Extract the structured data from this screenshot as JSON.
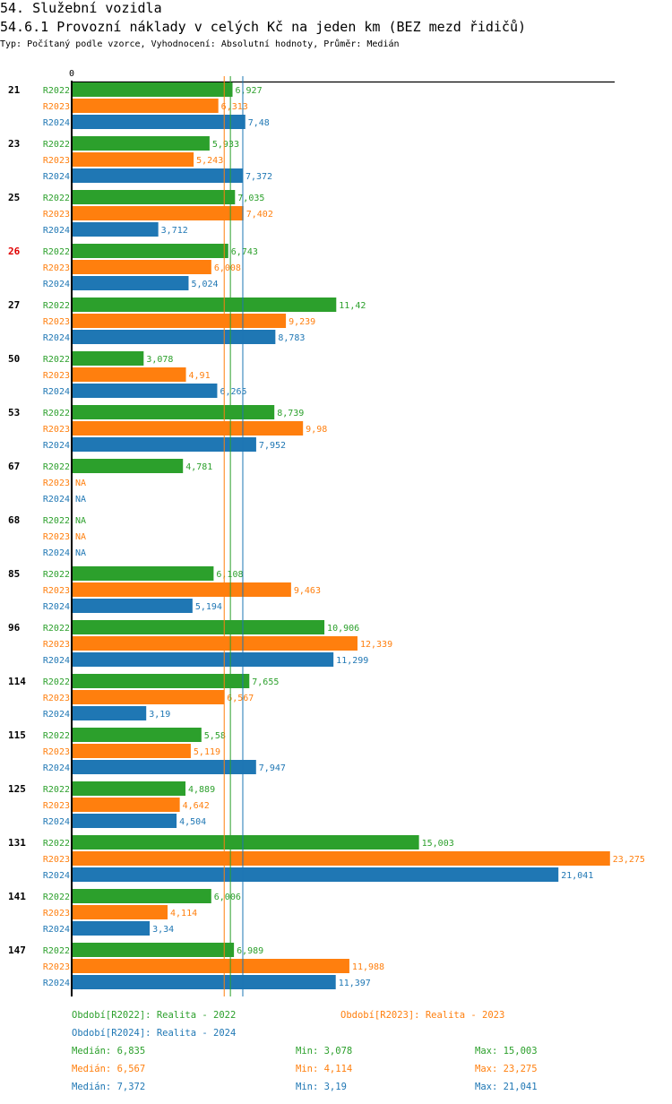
{
  "header": {
    "section_title": "54. Služební vozidla",
    "chart_title": "54.6.1 Provozní náklady v celých Kč na jeden km (BEZ mezd řidičů)",
    "subtitle": "Typ: Počítaný podle vzorce, Vyhodnocení: Absolutní hodnoty, Průměr: Medián"
  },
  "colors": {
    "R2022": "#2ca02c",
    "R2023": "#ff7f0e",
    "R2024": "#1f77b4",
    "highlight": "#e00000",
    "axis": "#000000"
  },
  "chart_data": {
    "type": "bar",
    "orientation": "horizontal",
    "title": "54.6.1 Provozní náklady v celých Kč na jeden km (BEZ mezd řidičů)",
    "xlabel": "",
    "ylabel": "",
    "x_tick_labels": [
      "0"
    ],
    "xlim": [
      0,
      23.275
    ],
    "grid": false,
    "series_names": [
      "R2022",
      "R2023",
      "R2024"
    ],
    "categories": [
      "21",
      "23",
      "25",
      "26",
      "27",
      "50",
      "53",
      "67",
      "68",
      "85",
      "96",
      "114",
      "115",
      "125",
      "131",
      "141",
      "147"
    ],
    "highlighted_category": "26",
    "series": [
      {
        "name": "R2022",
        "values": [
          6.927,
          5.933,
          7.035,
          6.743,
          11.42,
          3.078,
          8.739,
          4.781,
          null,
          6.108,
          10.906,
          7.655,
          5.58,
          4.889,
          15.003,
          6.006,
          6.989
        ],
        "labels": [
          "6,927",
          "5,933",
          "7,035",
          "6,743",
          "11,42",
          "3,078",
          "8,739",
          "4,781",
          "NA",
          "6,108",
          "10,906",
          "7,655",
          "5,58",
          "4,889",
          "15,003",
          "6,006",
          "6,989"
        ]
      },
      {
        "name": "R2023",
        "values": [
          6.313,
          5.243,
          7.402,
          6.008,
          9.239,
          4.91,
          9.98,
          null,
          null,
          9.463,
          12.339,
          6.567,
          5.119,
          4.642,
          23.275,
          4.114,
          11.988
        ],
        "labels": [
          "6,313",
          "5,243",
          "7,402",
          "6,008",
          "9,239",
          "4,91",
          "9,98",
          "NA",
          "NA",
          "9,463",
          "12,339",
          "6,567",
          "5,119",
          "4,642",
          "23,275",
          "4,114",
          "11,988"
        ]
      },
      {
        "name": "R2024",
        "values": [
          7.48,
          7.372,
          3.712,
          5.024,
          8.783,
          6.265,
          7.952,
          null,
          null,
          5.194,
          11.299,
          3.19,
          7.947,
          4.504,
          21.041,
          3.34,
          11.397
        ],
        "labels": [
          "7,48",
          "7,372",
          "3,712",
          "5,024",
          "8,783",
          "6,265",
          "7,952",
          "NA",
          "NA",
          "5,194",
          "11,299",
          "3,19",
          "7,947",
          "4,504",
          "21,041",
          "3,34",
          "11,397"
        ]
      }
    ],
    "reference_lines": [
      {
        "series": "R2022",
        "type": "median",
        "value": 6.835
      },
      {
        "series": "R2023",
        "type": "median",
        "value": 6.567
      },
      {
        "series": "R2024",
        "type": "median",
        "value": 7.372
      }
    ],
    "legend": [
      {
        "series": "R2022",
        "text": "Období[R2022]: Realita - 2022"
      },
      {
        "series": "R2023",
        "text": "Období[R2023]: Realita - 2023"
      },
      {
        "series": "R2024",
        "text": "Období[R2024]: Realita - 2024"
      }
    ],
    "stats": [
      {
        "series": "R2022",
        "median": "Medián: 6,835",
        "min": "Min: 3,078",
        "max": "Max: 15,003"
      },
      {
        "series": "R2023",
        "median": "Medián: 6,567",
        "min": "Min: 4,114",
        "max": "Max: 23,275"
      },
      {
        "series": "R2024",
        "median": "Medián: 7,372",
        "min": "Min: 3,19",
        "max": "Max: 21,041"
      }
    ],
    "legend_placement": "bottom"
  }
}
